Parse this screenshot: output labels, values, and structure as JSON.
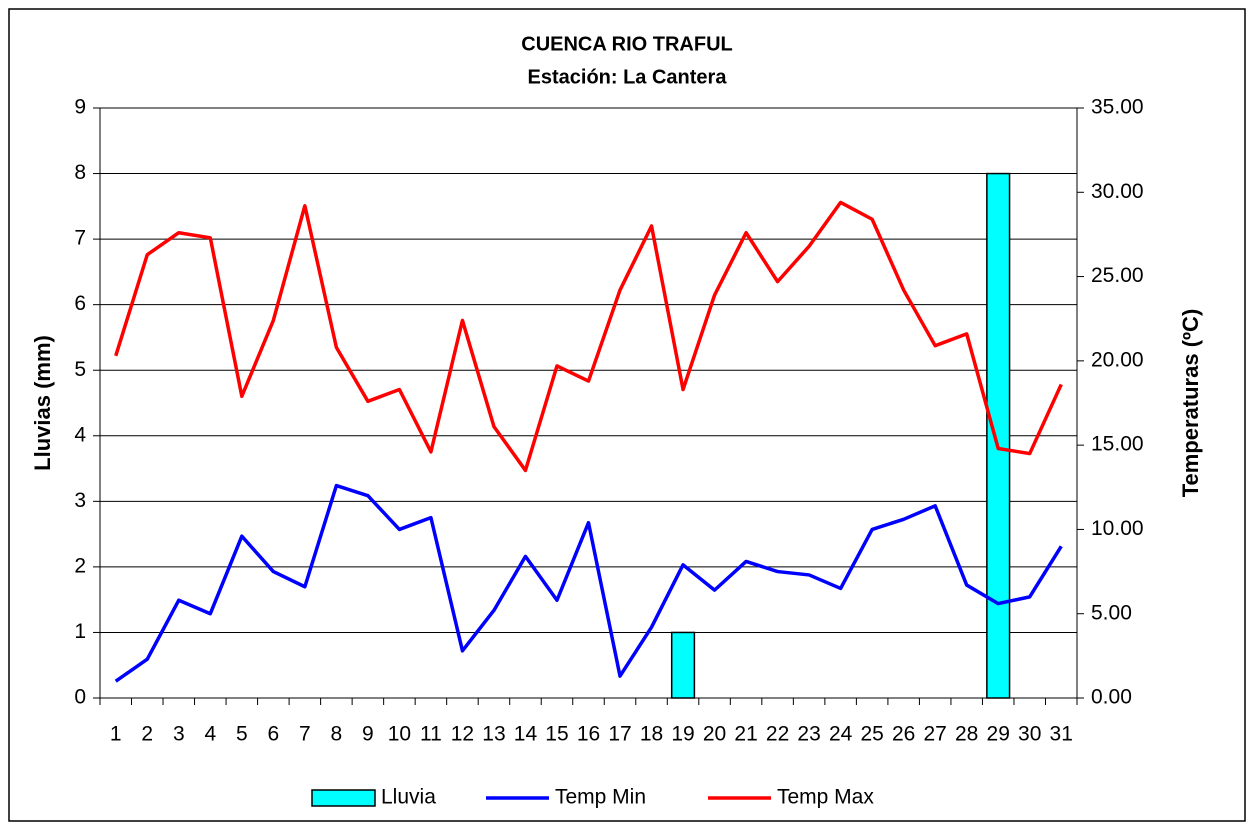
{
  "chart_data": {
    "type": "combo",
    "title": "CUENCA RIO TRAFUL",
    "subtitle": "Estación: La Cantera",
    "y_label": "Lluvias (mm)",
    "y2_label": "Temperaturas (ºC)",
    "categories": [
      "1",
      "2",
      "3",
      "4",
      "5",
      "6",
      "7",
      "8",
      "9",
      "10",
      "11",
      "12",
      "13",
      "14",
      "15",
      "16",
      "17",
      "18",
      "19",
      "20",
      "21",
      "22",
      "23",
      "24",
      "25",
      "26",
      "27",
      "28",
      "29",
      "30",
      "31"
    ],
    "ylim": [
      0,
      9
    ],
    "yticks": [
      0,
      1,
      2,
      3,
      4,
      5,
      6,
      7,
      8,
      9
    ],
    "y2lim": [
      0,
      35
    ],
    "y2ticks": [
      {
        "value": 0,
        "label": "0.00"
      },
      {
        "value": 5,
        "label": "5.00"
      },
      {
        "value": 10,
        "label": "10.00"
      },
      {
        "value": 15,
        "label": "15.00"
      },
      {
        "value": 20,
        "label": "20.00"
      },
      {
        "value": 25,
        "label": "25.00"
      },
      {
        "value": 30,
        "label": "30.00"
      },
      {
        "value": 35,
        "label": "35.00"
      }
    ],
    "grid": true,
    "legend": "bottom",
    "series": [
      {
        "name": "Lluvia",
        "type": "bar",
        "color": "#00ffff",
        "axis": "y",
        "values": [
          0,
          0,
          0,
          0,
          0,
          0,
          0,
          0,
          0,
          0,
          0,
          0,
          0,
          0,
          0,
          0,
          0,
          0,
          1,
          0,
          0,
          0,
          0,
          0,
          0,
          0,
          0,
          0,
          8,
          0,
          0
        ]
      },
      {
        "name": "Temp Min",
        "type": "line",
        "color": "#0000ff",
        "axis": "y2",
        "values": [
          1.0,
          2.3,
          5.8,
          5.0,
          9.6,
          7.5,
          6.6,
          12.6,
          12.0,
          10.0,
          10.7,
          2.8,
          5.2,
          8.4,
          5.8,
          10.4,
          1.3,
          4.2,
          7.9,
          6.4,
          8.1,
          7.5,
          7.3,
          6.5,
          10.0,
          10.6,
          11.4,
          6.7,
          5.6,
          6.0,
          9.0
        ]
      },
      {
        "name": "Temp Max",
        "type": "line",
        "color": "#ff0000",
        "axis": "y2",
        "values": [
          20.3,
          26.3,
          27.6,
          27.3,
          17.9,
          22.4,
          29.2,
          20.8,
          17.6,
          18.3,
          14.6,
          22.4,
          16.1,
          13.5,
          19.7,
          18.8,
          24.2,
          28.0,
          18.3,
          23.9,
          27.6,
          24.7,
          26.8,
          29.4,
          28.4,
          24.2,
          20.9,
          21.6,
          14.8,
          14.5,
          18.6
        ]
      }
    ]
  }
}
